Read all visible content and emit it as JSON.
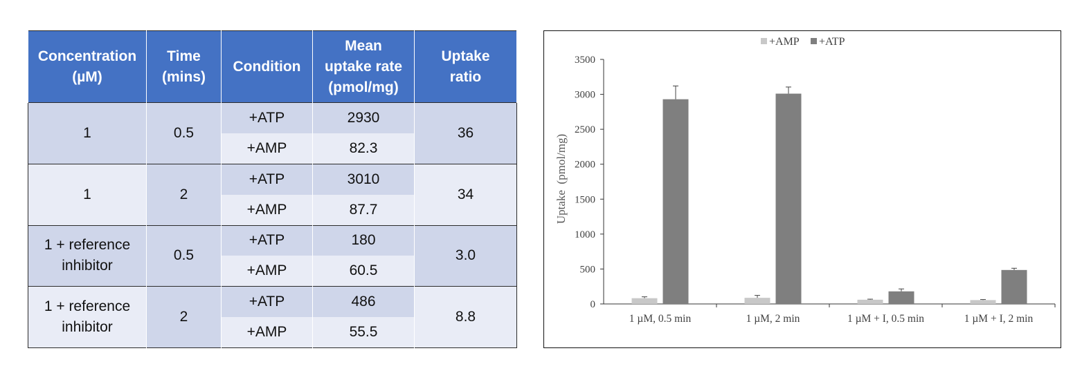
{
  "table": {
    "headers": [
      [
        "Concentration",
        "(µM)"
      ],
      [
        "Time",
        "(mins)"
      ],
      [
        "Condition"
      ],
      [
        "Mean",
        "uptake rate",
        "(pmol/mg)"
      ],
      [
        "Uptake",
        "ratio"
      ]
    ],
    "groups": [
      {
        "concentration": [
          "1"
        ],
        "time": "0.5",
        "ratio": "36",
        "rows": [
          {
            "condition": "+ATP",
            "rate": "2930"
          },
          {
            "condition": "+AMP",
            "rate": "82.3"
          }
        ]
      },
      {
        "concentration": [
          "1"
        ],
        "time": "2",
        "ratio": "34",
        "rows": [
          {
            "condition": "+ATP",
            "rate": "3010"
          },
          {
            "condition": "+AMP",
            "rate": "87.7"
          }
        ]
      },
      {
        "concentration": [
          "1 + reference",
          "inhibitor"
        ],
        "time": "0.5",
        "ratio": "3.0",
        "rows": [
          {
            "condition": "+ATP",
            "rate": "180"
          },
          {
            "condition": "+AMP",
            "rate": "60.5"
          }
        ]
      },
      {
        "concentration": [
          "1 + reference",
          "inhibitor"
        ],
        "time": "2",
        "ratio": "8.8",
        "rows": [
          {
            "condition": "+ATP",
            "rate": "486"
          },
          {
            "condition": "+AMP",
            "rate": "55.5"
          }
        ]
      }
    ]
  },
  "chart_data": {
    "type": "bar",
    "categories": [
      "1 µM, 0.5 min",
      "1 µM, 2 min",
      "1 µM + I, 0.5 min",
      "1 µM + I, 2 min"
    ],
    "series": [
      {
        "name": "+AMP",
        "values": [
          82.3,
          87.7,
          60.5,
          55.5
        ],
        "errors": [
          20,
          35,
          8,
          8
        ],
        "color": "#c8c8c8"
      },
      {
        "name": "+ATP",
        "values": [
          2930,
          3010,
          180,
          486
        ],
        "errors": [
          190,
          95,
          35,
          25
        ],
        "color": "#7f7f7f"
      }
    ],
    "ylabel": "Uptake  (pmol/mg)",
    "ylim": [
      0,
      3500
    ],
    "yticks": [
      0,
      500,
      1000,
      1500,
      2000,
      2500,
      3000,
      3500
    ],
    "legend_position": "top-center",
    "grid": false
  },
  "colors": {
    "header_bg": "#4472c4",
    "row_dark": "#cfd6ea",
    "row_light": "#e9ecf6"
  }
}
